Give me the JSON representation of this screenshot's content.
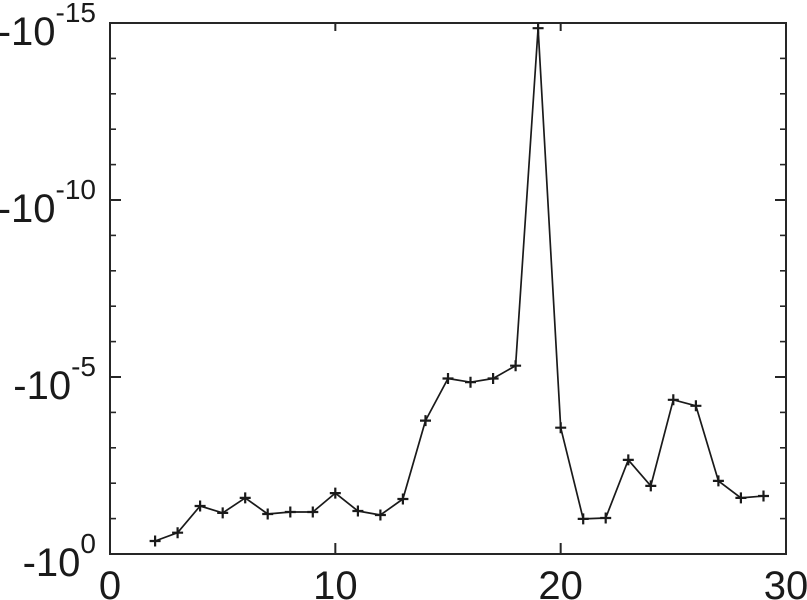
{
  "figure": {
    "background": "#ffffff",
    "axis_color": "#262626",
    "tick_label_color": "#1a1a1a"
  },
  "chart_data": {
    "type": "line",
    "title": "",
    "xlabel": "",
    "ylabel": "",
    "grid": false,
    "legend": null,
    "line_color": "#1a1a1a",
    "marker": "+",
    "marker_color": "#1a1a1a",
    "x_axis": {
      "scale": "linear",
      "xlim": [
        0,
        30
      ],
      "ticks": [
        {
          "value": 0,
          "label": "0"
        },
        {
          "value": 10,
          "label": "10"
        },
        {
          "value": 20,
          "label": "20"
        },
        {
          "value": 30,
          "label": "30"
        }
      ]
    },
    "y_axis": {
      "scale": "negative-log",
      "note": "log scale of |y| for negative values; bottom tick -10^0, top tick -10^-15",
      "ylim": [
        -1,
        -1e-15
      ],
      "ticks": [
        {
          "exponent": -15,
          "base": "-10",
          "sup": "-15"
        },
        {
          "exponent": -10,
          "base": "-10",
          "sup": "-10"
        },
        {
          "exponent": -5,
          "base": "-10",
          "sup": "-5"
        },
        {
          "exponent": 0,
          "base": "-10",
          "sup": "0"
        }
      ],
      "minor_tick_exponents": [
        -14,
        -13,
        -12,
        -11,
        -9,
        -8,
        -7,
        -6,
        -4,
        -3,
        -2,
        -1
      ]
    },
    "x": [
      2,
      3,
      4,
      5,
      6,
      7,
      8,
      9,
      10,
      11,
      12,
      13,
      14,
      15,
      16,
      17,
      18,
      19,
      20,
      21,
      22,
      23,
      24,
      25,
      26,
      27,
      28,
      29
    ],
    "values": [
      -0.43,
      -0.25,
      -0.044,
      -0.069,
      -0.026,
      -0.074,
      -0.065,
      -0.065,
      -0.019,
      -0.061,
      -0.079,
      -0.028,
      -0.00017,
      -1.1e-05,
      -1.4e-05,
      -1.1e-05,
      -4.8e-06,
      -1.4e-15,
      -0.00027,
      -0.102,
      -0.096,
      -0.0022,
      -0.0119,
      -4.4e-05,
      -6.5e-05,
      -0.0086,
      -0.026,
      -0.023
    ]
  }
}
